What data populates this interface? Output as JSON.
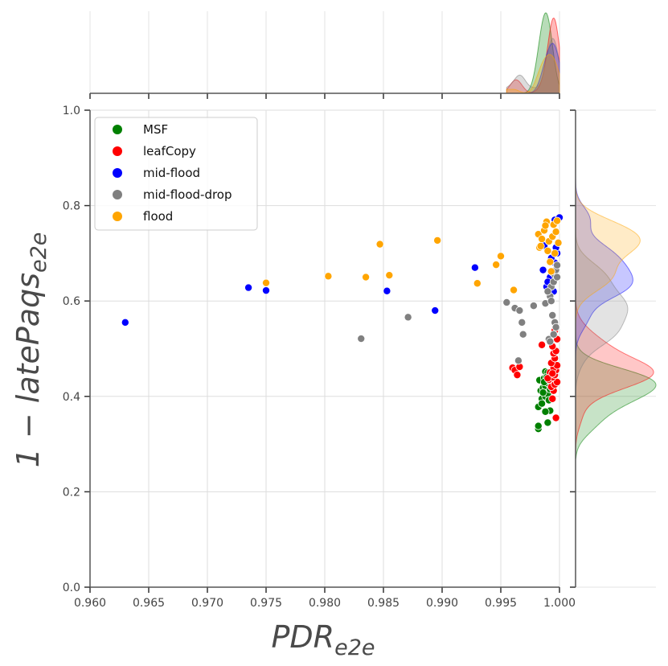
{
  "chart_data": {
    "type": "scatter",
    "xlabel": "PDR",
    "xlabel_sub": "e2e",
    "ylabel": "1 − latePaqs",
    "ylabel_sub": "e2e",
    "xlim": [
      0.96,
      1.0
    ],
    "ylim": [
      0.0,
      1.0
    ],
    "xticks": [
      "0.960",
      "0.965",
      "0.970",
      "0.975",
      "0.980",
      "0.985",
      "0.990",
      "0.995",
      "1.000"
    ],
    "yticks": [
      "0.0",
      "0.2",
      "0.4",
      "0.6",
      "0.8",
      "1.0"
    ],
    "grid": true,
    "legend_position": "top-left",
    "marginals": "kde",
    "series": [
      {
        "name": "MSF",
        "color": "#008000",
        "points": [
          [
            0.9982,
            0.332
          ],
          [
            0.9982,
            0.338
          ],
          [
            0.9982,
            0.378
          ],
          [
            0.999,
            0.345
          ],
          [
            0.9992,
            0.37
          ],
          [
            0.9988,
            0.368
          ],
          [
            0.9985,
            0.395
          ],
          [
            0.9988,
            0.4
          ],
          [
            0.999,
            0.405
          ],
          [
            0.9984,
            0.412
          ],
          [
            0.9986,
            0.418
          ],
          [
            0.9988,
            0.422
          ],
          [
            0.999,
            0.428
          ],
          [
            0.9992,
            0.432
          ],
          [
            0.9983,
            0.434
          ],
          [
            0.9987,
            0.438
          ],
          [
            0.9991,
            0.442
          ],
          [
            0.9989,
            0.445
          ],
          [
            0.9993,
            0.448
          ],
          [
            0.9988,
            0.452
          ],
          [
            0.999,
            0.45
          ],
          [
            0.9986,
            0.408
          ],
          [
            0.9992,
            0.415
          ],
          [
            0.9994,
            0.425
          ],
          [
            0.9985,
            0.385
          ],
          [
            0.9991,
            0.392
          ],
          [
            0.9989,
            0.44
          ],
          [
            0.9987,
            0.43
          ]
        ]
      },
      {
        "name": "leafCopy",
        "color": "#ff0000",
        "points": [
          [
            0.996,
            0.46
          ],
          [
            0.9962,
            0.455
          ],
          [
            0.9964,
            0.445
          ],
          [
            0.9966,
            0.462
          ],
          [
            0.9985,
            0.508
          ],
          [
            0.9997,
            0.355
          ],
          [
            0.9994,
            0.395
          ],
          [
            0.9995,
            0.412
          ],
          [
            0.9993,
            0.42
          ],
          [
            0.9996,
            0.425
          ],
          [
            0.9998,
            0.43
          ],
          [
            0.9991,
            0.435
          ],
          [
            0.9994,
            0.44
          ],
          [
            0.9996,
            0.445
          ],
          [
            0.9992,
            0.45
          ],
          [
            0.9997,
            0.455
          ],
          [
            0.9995,
            0.46
          ],
          [
            0.9998,
            0.465
          ],
          [
            0.9993,
            0.47
          ],
          [
            0.9996,
            0.48
          ],
          [
            0.9995,
            0.49
          ],
          [
            0.9997,
            0.495
          ],
          [
            0.9994,
            0.505
          ],
          [
            0.9998,
            0.52
          ],
          [
            0.9996,
            0.538
          ],
          [
            0.999,
            0.438
          ],
          [
            0.9994,
            0.448
          ]
        ]
      },
      {
        "name": "mid-flood",
        "color": "#0000ff",
        "points": [
          [
            0.963,
            0.555
          ],
          [
            0.9735,
            0.628
          ],
          [
            0.975,
            0.622
          ],
          [
            0.9853,
            0.621
          ],
          [
            0.9894,
            0.58
          ],
          [
            0.9928,
            0.67
          ],
          [
            0.9987,
            0.716
          ],
          [
            0.9989,
            0.63
          ],
          [
            0.9992,
            0.65
          ],
          [
            0.9994,
            0.66
          ],
          [
            0.9996,
            0.68
          ],
          [
            0.9998,
            0.7
          ],
          [
            0.9993,
            0.69
          ],
          [
            0.9997,
            0.712
          ],
          [
            0.999,
            0.64
          ],
          [
            0.9995,
            0.62
          ],
          [
            0.9996,
            0.77
          ],
          [
            1.0,
            0.775
          ],
          [
            0.9986,
            0.665
          ]
        ]
      },
      {
        "name": "mid-flood-drop",
        "color": "#808080",
        "points": [
          [
            0.9831,
            0.521
          ],
          [
            0.9871,
            0.566
          ],
          [
            0.9955,
            0.597
          ],
          [
            0.9962,
            0.585
          ],
          [
            0.9966,
            0.58
          ],
          [
            0.9968,
            0.555
          ],
          [
            0.9969,
            0.53
          ],
          [
            0.9965,
            0.475
          ],
          [
            0.9978,
            0.59
          ],
          [
            0.9988,
            0.595
          ],
          [
            0.9992,
            0.61
          ],
          [
            0.9993,
            0.63
          ],
          [
            0.9995,
            0.64
          ],
          [
            0.9996,
            0.655
          ],
          [
            0.9997,
            0.665
          ],
          [
            0.9998,
            0.675
          ],
          [
            0.9994,
            0.57
          ],
          [
            0.9996,
            0.555
          ],
          [
            0.9991,
            0.52
          ],
          [
            0.9995,
            0.53
          ],
          [
            0.9997,
            0.545
          ],
          [
            0.9993,
            0.6
          ],
          [
            0.999,
            0.62
          ],
          [
            0.9998,
            0.65
          ],
          [
            0.9992,
            0.515
          ]
        ]
      },
      {
        "name": "flood",
        "color": "#ffa500",
        "points": [
          [
            0.975,
            0.638
          ],
          [
            0.9803,
            0.652
          ],
          [
            0.9835,
            0.65
          ],
          [
            0.9847,
            0.719
          ],
          [
            0.9855,
            0.654
          ],
          [
            0.9896,
            0.727
          ],
          [
            0.993,
            0.637
          ],
          [
            0.9946,
            0.676
          ],
          [
            0.995,
            0.694
          ],
          [
            0.9961,
            0.623
          ],
          [
            0.9982,
            0.74
          ],
          [
            0.9983,
            0.712
          ],
          [
            0.9985,
            0.73
          ],
          [
            0.9987,
            0.748
          ],
          [
            0.9989,
            0.766
          ],
          [
            0.999,
            0.705
          ],
          [
            0.9991,
            0.725
          ],
          [
            0.9992,
            0.682
          ],
          [
            0.9993,
            0.662
          ],
          [
            0.9994,
            0.735
          ],
          [
            0.9995,
            0.76
          ],
          [
            0.9996,
            0.7
          ],
          [
            0.9997,
            0.745
          ],
          [
            0.9998,
            0.768
          ],
          [
            0.9999,
            0.722
          ],
          [
            0.9984,
            0.715
          ],
          [
            0.9988,
            0.758
          ]
        ]
      }
    ]
  }
}
